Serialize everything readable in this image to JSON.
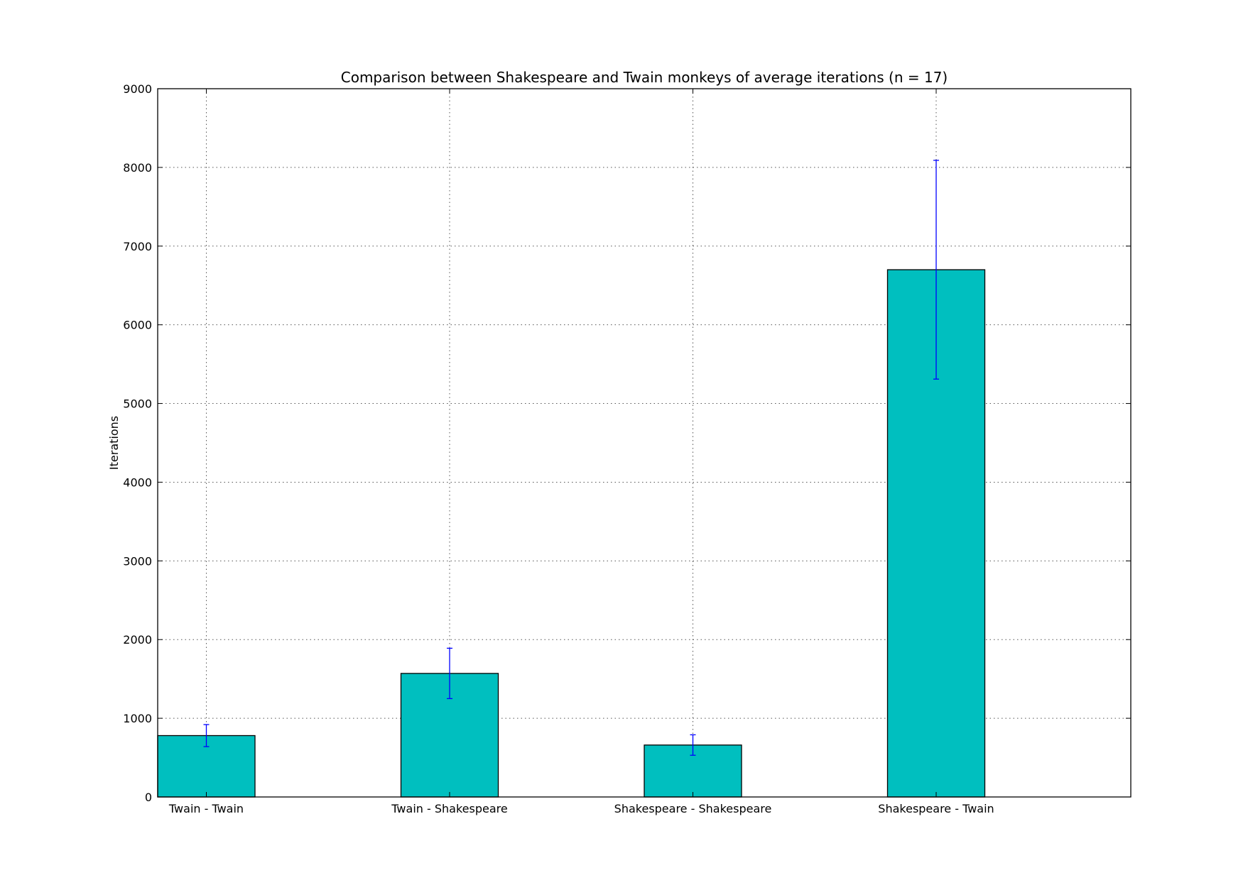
{
  "chart_data": {
    "type": "bar",
    "title": "Comparison between Shakespeare and Twain monkeys of average iterations (n = 17)",
    "xlabel": "",
    "ylabel": "Iterations",
    "ylim": [
      0,
      9000
    ],
    "yticks": [
      "0",
      "1000",
      "2000",
      "3000",
      "4000",
      "5000",
      "6000",
      "7000",
      "8000",
      "9000"
    ],
    "categories": [
      "Twain - Twain",
      "Twain - Shakespeare",
      "Shakespeare - Shakespeare",
      "Shakespeare - Twain"
    ],
    "values": [
      780,
      1570,
      660,
      6700
    ],
    "errors": [
      140,
      320,
      130,
      1390
    ],
    "grid": true,
    "legend": "none",
    "colors": {
      "bar": "#00bfbf",
      "error": "#0000ff"
    }
  }
}
